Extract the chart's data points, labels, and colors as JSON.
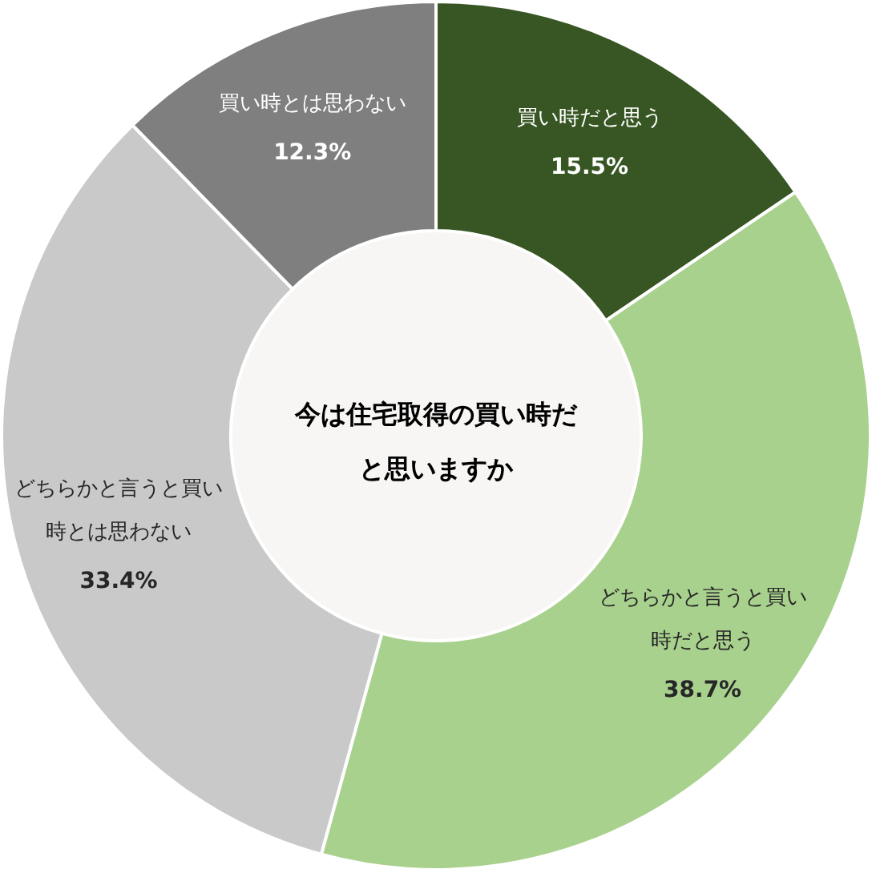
{
  "chart_data": {
    "type": "donut",
    "title": "今は住宅取得の買い時だと思いますか",
    "categories": [
      "買い時だと思う",
      "どちらかと言うと買い時だと思う",
      "どちらかと言うと買い時とは思わない",
      "買い時とは思わない"
    ],
    "values": [
      15.5,
      38.7,
      33.4,
      12.3
    ],
    "colors": [
      "#375623",
      "#a9d18e",
      "#c9c9c9",
      "#7f7f7f"
    ],
    "value_labels": [
      "15.5%",
      "38.7%",
      "33.4%",
      "12.3%"
    ]
  }
}
